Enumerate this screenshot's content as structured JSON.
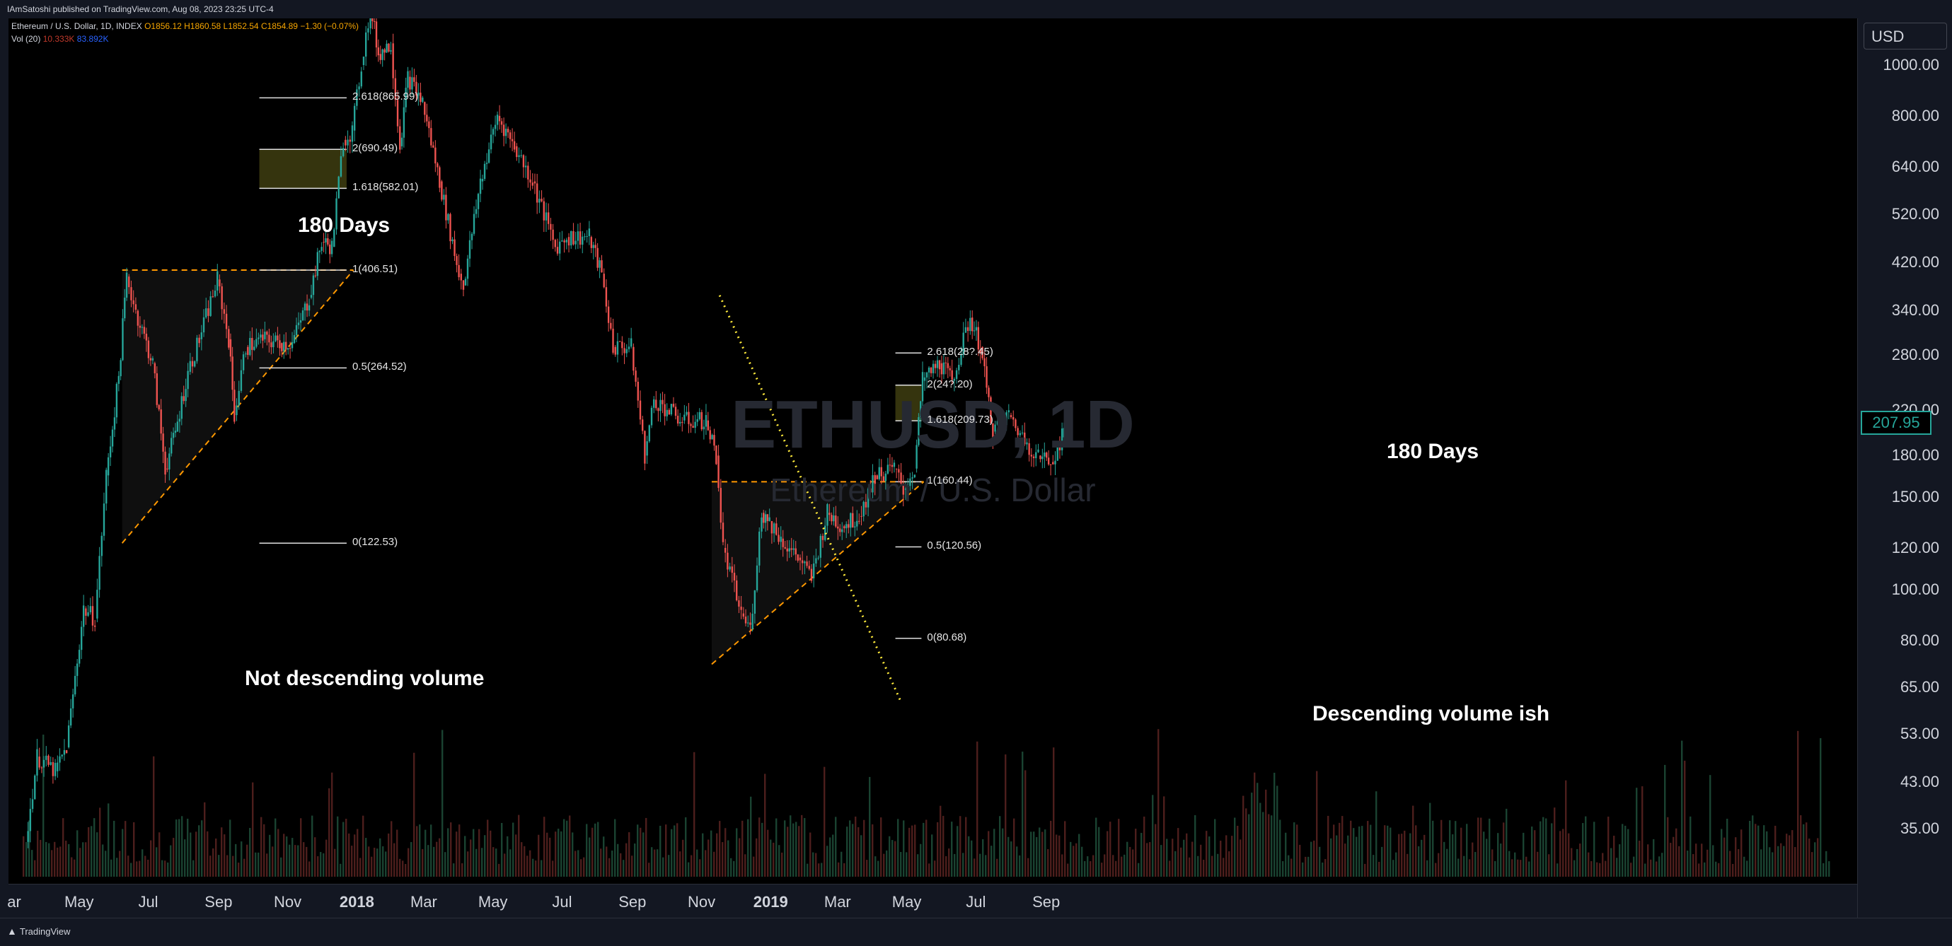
{
  "header": {
    "publisher": "IAmSatoshi published on TradingView.com, Aug 08, 2023 23:25 UTC-4"
  },
  "legend": {
    "symbol": "Ethereum / U.S. Dollar, 1D, INDEX",
    "o": "O1856.12",
    "h": "H1860.58",
    "l": "L1852.54",
    "c": "C1854.89",
    "chg": "−1.30 (−0.07%)",
    "vol_label": "Vol (20)",
    "vol_val1": "10.333K",
    "vol_val2": "83.892K"
  },
  "watermark": {
    "symbol": "ETHUSD, 1D",
    "name": "Ethereum / U.S. Dollar"
  },
  "annotations": {
    "days_left": "180 Days",
    "days_right": "180 Days",
    "vol_left": "Not descending volume",
    "vol_right": "Descending volume ish"
  },
  "price_axis": {
    "currency": "USD",
    "last_price": "207.95"
  },
  "footer": {
    "brand": "TradingView"
  },
  "colors": {
    "up": "#26a69a",
    "down": "#ef5350",
    "fib_line": "#e0e0e0",
    "triangle_line": "#ff9800",
    "trend_dotted": "#ffeb3b",
    "zone": "#3b3a10"
  },
  "chart_data": {
    "type": "candlestick",
    "title": "ETHUSD, 1D",
    "y_scale": "log",
    "ylim": [
      31,
      1200
    ],
    "y_ticks": [
      1000.0,
      800.0,
      640.0,
      520.0,
      420.0,
      340.0,
      280.0,
      220.0,
      180.0,
      150.0,
      120.0,
      100.0,
      80.0,
      65.0,
      53.0,
      43.0,
      35.0
    ],
    "y_tick_labels": [
      "1000.00",
      "800.00",
      "640.00",
      "520.00",
      "420.00",
      "340.00",
      "280.00",
      "220.00",
      "180.00",
      "150.00",
      "120.00",
      "100.00",
      "80.00",
      "65.00",
      "53.00",
      "43.00",
      "35.00"
    ],
    "x_ticks": [
      {
        "label": "ar",
        "date": "2017-03-01",
        "bold": false
      },
      {
        "label": "May",
        "date": "2017-05-01",
        "bold": false
      },
      {
        "label": "Jul",
        "date": "2017-07-01",
        "bold": false
      },
      {
        "label": "Sep",
        "date": "2017-09-01",
        "bold": false
      },
      {
        "label": "Nov",
        "date": "2017-11-01",
        "bold": false
      },
      {
        "label": "2018",
        "date": "2018-01-01",
        "bold": true
      },
      {
        "label": "Mar",
        "date": "2018-03-01",
        "bold": false
      },
      {
        "label": "May",
        "date": "2018-05-01",
        "bold": false
      },
      {
        "label": "Jul",
        "date": "2018-07-01",
        "bold": false
      },
      {
        "label": "Sep",
        "date": "2018-09-01",
        "bold": false
      },
      {
        "label": "Nov",
        "date": "2018-11-01",
        "bold": false
      },
      {
        "label": "2019",
        "date": "2019-01-01",
        "bold": true
      },
      {
        "label": "Mar",
        "date": "2019-03-01",
        "bold": false
      },
      {
        "label": "May",
        "date": "2019-05-01",
        "bold": false
      },
      {
        "label": "Jul",
        "date": "2019-07-01",
        "bold": false
      },
      {
        "label": "Sep",
        "date": "2019-09-01",
        "bold": false
      }
    ],
    "price_path": [
      [
        "2017-03-15",
        33
      ],
      [
        "2017-03-25",
        48
      ],
      [
        "2017-04-10",
        45
      ],
      [
        "2017-04-20",
        50
      ],
      [
        "2017-05-05",
        92
      ],
      [
        "2017-05-15",
        88
      ],
      [
        "2017-05-25",
        165
      ],
      [
        "2017-06-05",
        255
      ],
      [
        "2017-06-12",
        395
      ],
      [
        "2017-06-20",
        340
      ],
      [
        "2017-07-05",
        270
      ],
      [
        "2017-07-16",
        170
      ],
      [
        "2017-07-25",
        200
      ],
      [
        "2017-08-05",
        260
      ],
      [
        "2017-08-15",
        300
      ],
      [
        "2017-08-31",
        390
      ],
      [
        "2017-09-10",
        300
      ],
      [
        "2017-09-15",
        215
      ],
      [
        "2017-09-25",
        290
      ],
      [
        "2017-10-10",
        300
      ],
      [
        "2017-10-25",
        295
      ],
      [
        "2017-11-05",
        295
      ],
      [
        "2017-11-20",
        360
      ],
      [
        "2017-12-01",
        460
      ],
      [
        "2017-12-10",
        450
      ],
      [
        "2017-12-20",
        720
      ],
      [
        "2017-12-28",
        750
      ],
      [
        "2018-01-05",
        1000
      ],
      [
        "2018-01-13",
        1300
      ],
      [
        "2018-01-20",
        1050
      ],
      [
        "2018-01-31",
        1100
      ],
      [
        "2018-02-08",
        700
      ],
      [
        "2018-02-15",
        950
      ],
      [
        "2018-02-28",
        850
      ],
      [
        "2018-03-15",
        600
      ],
      [
        "2018-04-01",
        400
      ],
      [
        "2018-04-05",
        380
      ],
      [
        "2018-04-20",
        600
      ],
      [
        "2018-05-05",
        800
      ],
      [
        "2018-05-20",
        700
      ],
      [
        "2018-06-05",
        600
      ],
      [
        "2018-06-25",
        450
      ],
      [
        "2018-07-05",
        470
      ],
      [
        "2018-07-25",
        470
      ],
      [
        "2018-08-05",
        400
      ],
      [
        "2018-08-15",
        290
      ],
      [
        "2018-08-31",
        290
      ],
      [
        "2018-09-12",
        180
      ],
      [
        "2018-09-20",
        230
      ],
      [
        "2018-10-15",
        210
      ],
      [
        "2018-11-05",
        210
      ],
      [
        "2018-11-14",
        180
      ],
      [
        "2018-11-20",
        120
      ],
      [
        "2018-12-06",
        90
      ],
      [
        "2018-12-14",
        84
      ],
      [
        "2018-12-24",
        140
      ],
      [
        "2018-12-31",
        135
      ],
      [
        "2019-01-10",
        125
      ],
      [
        "2019-01-25",
        115
      ],
      [
        "2019-02-06",
        105
      ],
      [
        "2019-02-20",
        140
      ],
      [
        "2019-03-05",
        132
      ],
      [
        "2019-03-20",
        138
      ],
      [
        "2019-04-03",
        165
      ],
      [
        "2019-04-20",
        170
      ],
      [
        "2019-04-28",
        155
      ],
      [
        "2019-05-08",
        170
      ],
      [
        "2019-05-15",
        250
      ],
      [
        "2019-05-30",
        270
      ],
      [
        "2019-06-10",
        250
      ],
      [
        "2019-06-26",
        330
      ],
      [
        "2019-07-05",
        290
      ],
      [
        "2019-07-16",
        200
      ],
      [
        "2019-07-30",
        215
      ],
      [
        "2019-08-15",
        190
      ],
      [
        "2019-08-25",
        180
      ],
      [
        "2019-09-05",
        175
      ],
      [
        "2019-09-15",
        195
      ],
      [
        "2019-09-20",
        207.95
      ]
    ],
    "fib_extensions": [
      {
        "labels": [
          "2.618(865.99)",
          "2(690.49)",
          "1.618(582.01)",
          "1(406.51)",
          "0.5(264.52)",
          "0(122.53)"
        ],
        "levels": [
          865.99,
          690.49,
          582.01,
          406.51,
          264.52,
          122.53
        ],
        "x_start": "2017-10-07",
        "x_end": "2017-12-23",
        "zone": [
          582.01,
          690.49
        ]
      },
      {
        "labels": [
          "2.618(28?.45)",
          "2(24?.20)",
          "1.618(209.73)",
          "1(160.44)",
          "0.5(120.56)",
          "0(80.68)"
        ],
        "levels": [
          282.45,
          245.2,
          209.73,
          160.44,
          120.56,
          80.68
        ],
        "x_start": "2019-04-21",
        "x_end": "2019-05-14",
        "zone": [
          209.73,
          245.2
        ]
      }
    ],
    "triangles": [
      {
        "top": 406.51,
        "start": "2017-06-08",
        "end": "2017-12-29",
        "low_start": 122.53,
        "low_end": 406.51
      },
      {
        "top": 160.44,
        "start": "2018-11-10",
        "end": "2019-05-16",
        "low_start": 72,
        "low_end": 160.44
      }
    ],
    "volume_trend": {
      "start": "2018-11-17",
      "end": "2019-04-26",
      "start_frac": 0.68,
      "end_frac": 0.21
    }
  }
}
